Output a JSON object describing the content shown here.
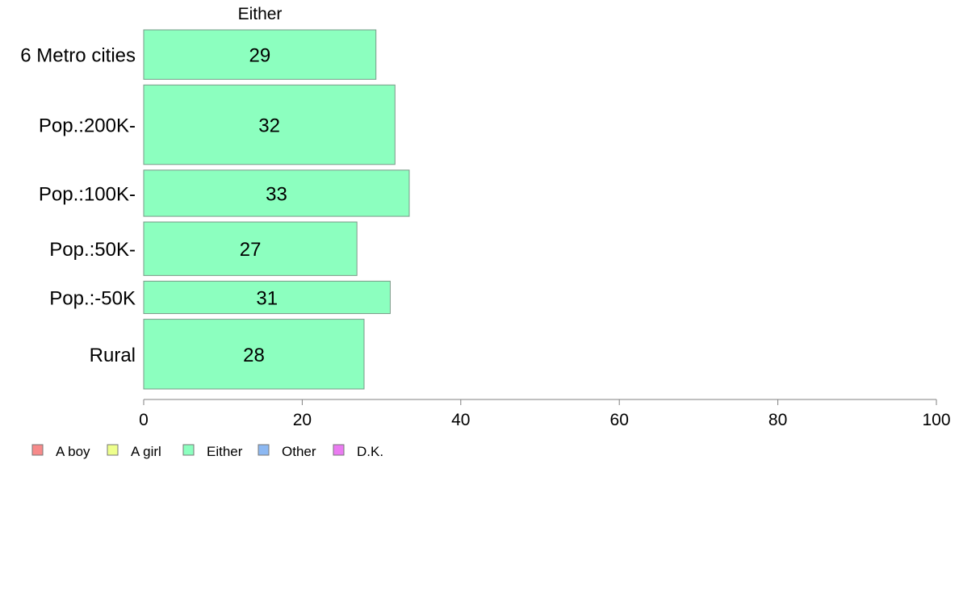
{
  "chart_data": {
    "type": "bar",
    "orientation": "horizontal",
    "title": "Either",
    "categories": [
      "6 Metro cities",
      "Pop.:200K-",
      "Pop.:100K-",
      "Pop.:50K-",
      "Pop.:-50K",
      "Rural"
    ],
    "values": [
      29,
      32,
      33,
      27,
      31,
      28
    ],
    "data_labels": [
      "29",
      "32",
      "33",
      "27",
      "31",
      "28"
    ],
    "bar_values_exact": [
      29.3,
      31.7,
      33.5,
      26.9,
      31.1,
      27.8
    ],
    "category_weights": [
      61,
      98,
      57,
      66,
      40,
      86
    ],
    "xlim": [
      0,
      100
    ],
    "xticks": [
      "0",
      "20",
      "40",
      "60",
      "80",
      "100"
    ],
    "xtick_values": [
      0,
      20,
      40,
      60,
      80,
      100
    ],
    "grid": false,
    "bar_color": "#8cffbf",
    "bar_stroke": "#7a9a88",
    "legend_position": "bottom-left",
    "legend": [
      {
        "label": "A boy",
        "color": "#f78a8a"
      },
      {
        "label": "A girl",
        "color": "#eeff8c"
      },
      {
        "label": "Either",
        "color": "#8cffbf"
      },
      {
        "label": "Other",
        "color": "#8cb8f2"
      },
      {
        "label": "D.K.",
        "color": "#ea7bf1"
      }
    ]
  }
}
